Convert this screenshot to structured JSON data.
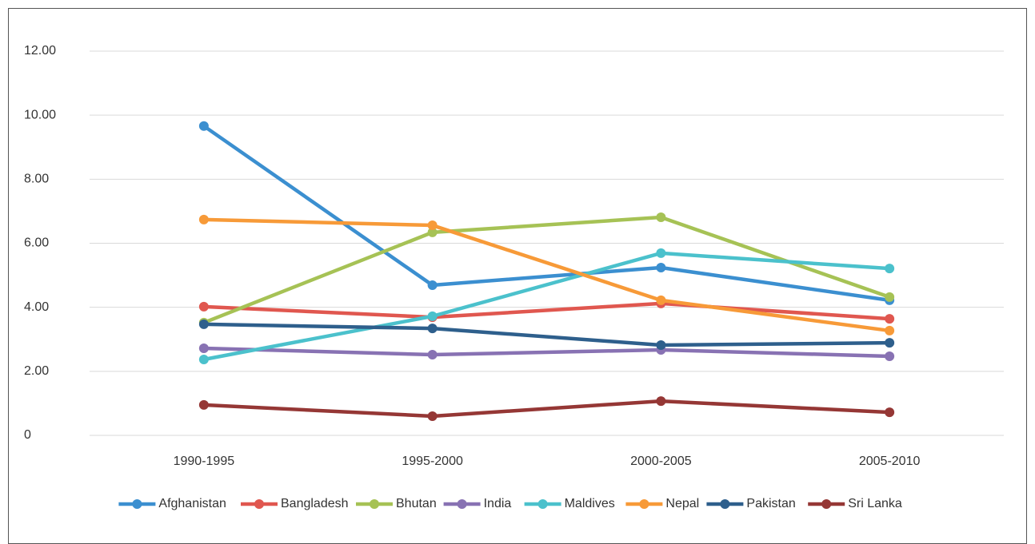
{
  "chart_data": {
    "type": "line",
    "categories": [
      "1990-1995",
      "1995-2000",
      "2000-2005",
      "2005-2010"
    ],
    "series": [
      {
        "name": "Afghanistan",
        "color": "#3b8fd0",
        "values": [
          9.66,
          4.69,
          5.24,
          4.22
        ]
      },
      {
        "name": "Bangladesh",
        "color": "#e0574f",
        "values": [
          4.02,
          3.69,
          4.12,
          3.64
        ]
      },
      {
        "name": "Bhutan",
        "color": "#a6c255",
        "values": [
          3.52,
          6.34,
          6.81,
          4.32
        ]
      },
      {
        "name": "India",
        "color": "#8872b3",
        "values": [
          2.72,
          2.52,
          2.67,
          2.47
        ]
      },
      {
        "name": "Maldives",
        "color": "#4bc1cc",
        "values": [
          2.37,
          3.72,
          5.69,
          5.21
        ]
      },
      {
        "name": "Nepal",
        "color": "#f79a38",
        "values": [
          6.74,
          6.56,
          4.22,
          3.27
        ]
      },
      {
        "name": "Pakistan",
        "color": "#2e5f8c",
        "values": [
          3.47,
          3.34,
          2.82,
          2.89
        ]
      },
      {
        "name": "Sri Lanka",
        "color": "#953735",
        "values": [
          0.95,
          0.6,
          1.07,
          0.72
        ]
      }
    ],
    "ylim": [
      0,
      12
    ],
    "yticks": [
      0,
      {
        "value": 2,
        "label": "2.00"
      },
      {
        "value": 4,
        "label": "4.00"
      },
      {
        "value": 6,
        "label": "6.00"
      },
      {
        "value": 8,
        "label": "8.00"
      },
      {
        "value": 10,
        "label": "10.00"
      },
      {
        "value": 12,
        "label": "12.00"
      }
    ],
    "grid": true,
    "legend": "bottom"
  }
}
